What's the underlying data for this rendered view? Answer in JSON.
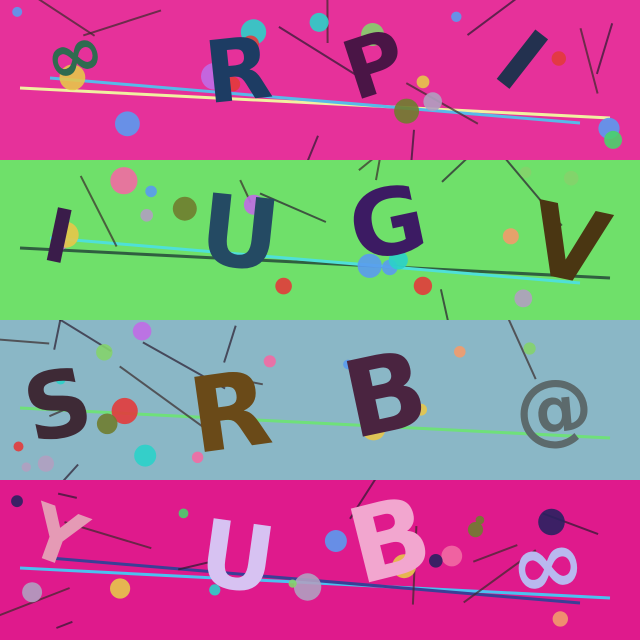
{
  "captcha": {
    "rows": [
      {
        "bg": "#e6319a",
        "chars": [
          {
            "t": "∞",
            "c": "#2f6b50"
          },
          {
            "t": "R",
            "c": "#1d3c63"
          },
          {
            "t": "P",
            "c": "#4a1546"
          },
          {
            "t": "I",
            "c": "#23314f"
          }
        ],
        "underline_colors": [
          "#f1f1a1",
          "#58b9e9"
        ]
      },
      {
        "bg": "#6fe06a",
        "chars": [
          {
            "t": "I",
            "c": "#3a1c4a"
          },
          {
            "t": "U",
            "c": "#244a63"
          },
          {
            "t": "G",
            "c": "#3c1b63"
          },
          {
            "t": "V",
            "c": "#4a3612"
          }
        ],
        "underline_colors": [
          "#305f40",
          "#4fe0d8"
        ]
      },
      {
        "bg": "#8ab7c6",
        "chars": [
          {
            "t": "S",
            "c": "#3e2a36"
          },
          {
            "t": "R",
            "c": "#6a4a18"
          },
          {
            "t": "B",
            "c": "#4a2440"
          },
          {
            "t": "@",
            "c": "#5c6a6c"
          }
        ],
        "underline_colors": [
          "#6fe07a"
        ]
      },
      {
        "bg": "#df1a8c",
        "chars": [
          {
            "t": "Y",
            "c": "#e59ab5"
          },
          {
            "t": "U",
            "c": "#d7c2f2"
          },
          {
            "t": "B",
            "c": "#f2a6cf"
          },
          {
            "t": "∞",
            "c": "#b9b8ef"
          }
        ],
        "underline_colors": [
          "#4cc1f0",
          "#3b3f96"
        ]
      }
    ],
    "dot_palette": [
      "#e23b3b",
      "#c06be6",
      "#5a9bf0",
      "#49d16b",
      "#2a2160",
      "#e7c74a",
      "#b0a0c0",
      "#6f7d2f",
      "#2ad1c9",
      "#f26aa3",
      "#84d36b",
      "#f29b6b"
    ]
  }
}
